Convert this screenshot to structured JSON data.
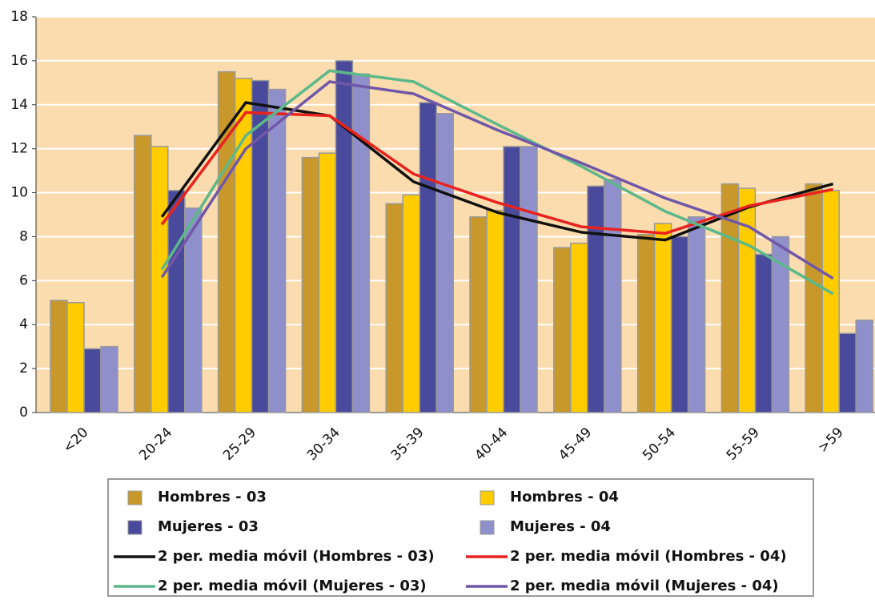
{
  "chart_data": {
    "type": "bar",
    "categories": [
      "<20",
      "20-24",
      "25-29",
      "30-34",
      "35-39",
      "40-44",
      "45-49",
      "50-54",
      "55-59",
      ">59"
    ],
    "ylim": [
      0,
      18
    ],
    "yticks": [
      0,
      2,
      4,
      6,
      8,
      10,
      12,
      14,
      16,
      18
    ],
    "grid": true,
    "series": [
      {
        "name": "Hombres - 03",
        "type": "bar",
        "color": "#c8992a",
        "values": [
          5.1,
          12.6,
          15.5,
          11.6,
          9.5,
          8.9,
          7.5,
          8.1,
          10.4,
          10.4
        ]
      },
      {
        "name": "Hombres - 04",
        "type": "bar",
        "color": "#ffcc00",
        "values": [
          5.0,
          12.1,
          15.2,
          11.8,
          9.9,
          9.2,
          7.7,
          8.6,
          10.2,
          10.1
        ]
      },
      {
        "name": "Mujeres - 03",
        "type": "bar",
        "color": "#4a4a9c",
        "values": [
          2.9,
          10.1,
          15.1,
          16.0,
          14.1,
          12.1,
          10.3,
          8.0,
          7.2,
          3.6
        ]
      },
      {
        "name": "Mujeres - 04",
        "type": "bar",
        "color": "#8f8fcc",
        "values": [
          3.0,
          9.3,
          14.7,
          15.4,
          13.6,
          12.1,
          10.6,
          8.9,
          8.0,
          4.2
        ]
      },
      {
        "name": "2 per. media móvil (Hombres - 03)",
        "type": "line",
        "color": "#111111",
        "values": [
          null,
          8.9,
          14.1,
          13.5,
          10.5,
          9.1,
          8.2,
          7.85,
          9.35,
          10.4
        ]
      },
      {
        "name": "2 per. media móvil (Hombres - 04)",
        "type": "line",
        "color": "#e8231f",
        "values": [
          null,
          8.55,
          13.65,
          13.5,
          10.85,
          9.55,
          8.45,
          8.15,
          9.4,
          10.15
        ]
      },
      {
        "name": "2 per. media móvil (Mujeres - 03)",
        "type": "line",
        "color": "#5cb88a",
        "values": [
          null,
          6.5,
          12.6,
          15.55,
          15.05,
          13.1,
          11.2,
          9.15,
          7.6,
          5.4
        ]
      },
      {
        "name": "2 per. media móvil (Mujeres - 04)",
        "type": "line",
        "color": "#7057a8",
        "values": [
          null,
          6.15,
          12.0,
          15.05,
          14.5,
          12.85,
          11.35,
          9.75,
          8.45,
          6.1
        ]
      }
    ]
  }
}
